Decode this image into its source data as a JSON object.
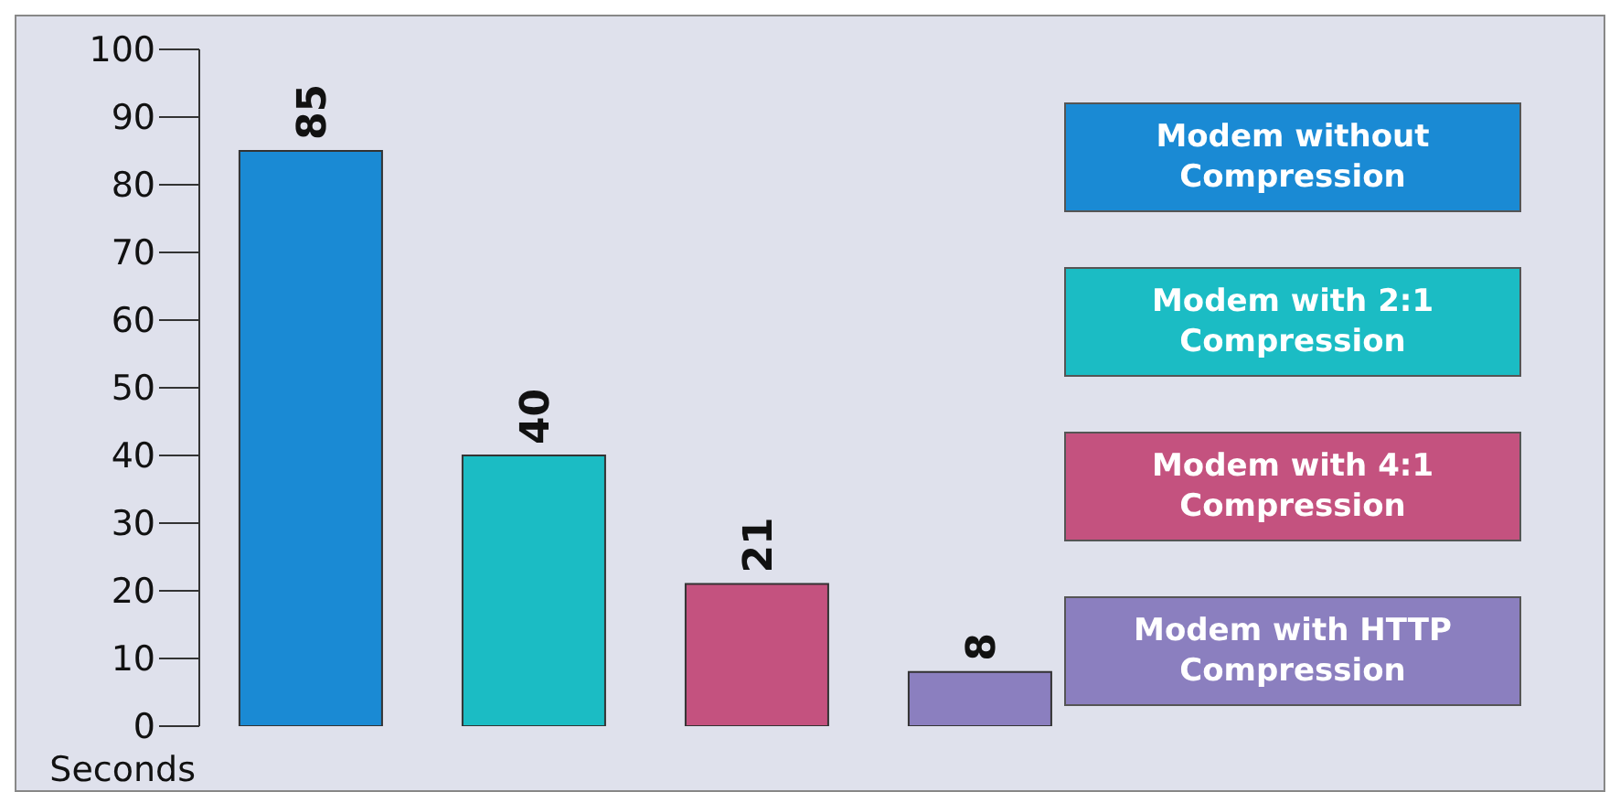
{
  "chart_data": {
    "type": "bar",
    "ylabel": "Seconds",
    "categories": [
      null,
      null,
      null,
      null
    ],
    "stacked": true,
    "data_labels": true,
    "legend": "right",
    "grid": false,
    "series": [
      {
        "name": "Modem without Compression",
        "color": "#1a8ad4",
        "values": [
          85,
          null,
          null,
          null
        ]
      },
      {
        "name": "Modem with 2:1 Compression",
        "color": "#1bbcc4",
        "values": [
          null,
          40,
          null,
          null
        ]
      },
      {
        "name": "Modem with 4:1 Compression",
        "color": "#c4527f",
        "values": [
          null,
          null,
          21,
          null
        ]
      },
      {
        "name": "Modem with HTTP Compression",
        "color": "#8b7fbf",
        "values": [
          null,
          null,
          null,
          8
        ]
      }
    ],
    "ylim": [
      0,
      100
    ],
    "yticks": [
      0,
      10,
      20,
      30,
      40,
      50,
      60,
      70,
      80,
      90,
      100
    ]
  }
}
